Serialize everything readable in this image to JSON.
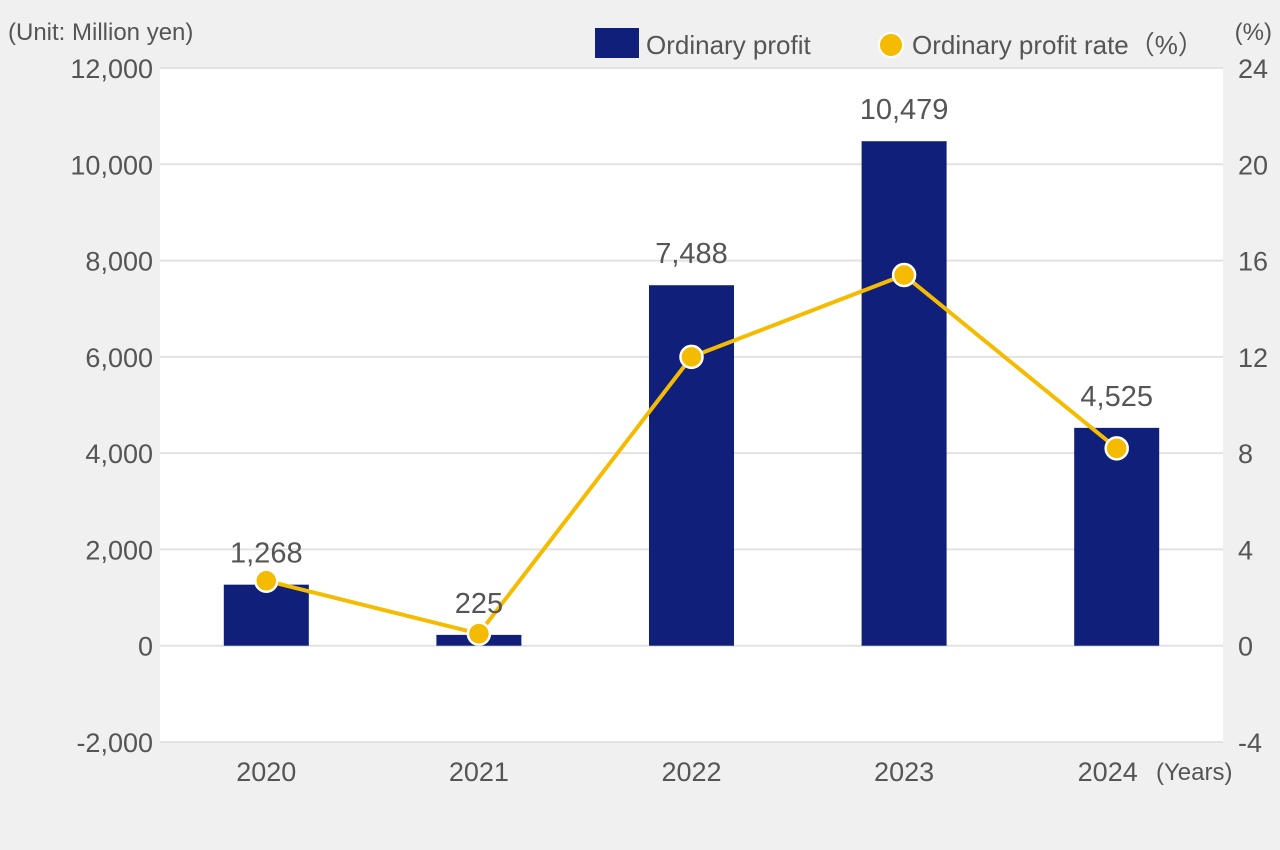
{
  "chart_data": {
    "type": "bar",
    "categories": [
      "2020",
      "2021",
      "2022",
      "2023",
      "2024"
    ],
    "x_unit_label": "(Years)",
    "y_unit_label": "(Unit: Million yen)",
    "y2_unit_label": "(%)",
    "ylim": [
      -2000,
      12000
    ],
    "yticks": [
      "-2,000",
      "0",
      "2,000",
      "4,000",
      "6,000",
      "8,000",
      "10,000",
      "12,000"
    ],
    "y2lim": [
      -4,
      24
    ],
    "y2ticks": [
      "-4",
      "0",
      "4",
      "8",
      "12",
      "16",
      "20",
      "24"
    ],
    "grid": true,
    "legend_position": "top-right",
    "series": [
      {
        "name": "Ordinary profit",
        "type": "bar",
        "axis": "left",
        "color": "#0f1f7a",
        "values": [
          1268,
          225,
          7488,
          10479,
          4525
        ],
        "labels": [
          "1,268",
          "225",
          "7,488",
          "10,479",
          "4,525"
        ]
      },
      {
        "name": "Ordinary profit rate（%）",
        "type": "line",
        "axis": "right",
        "color": "#f5bb00",
        "values": [
          2.7,
          0.5,
          12.0,
          15.4,
          8.2
        ]
      }
    ]
  }
}
